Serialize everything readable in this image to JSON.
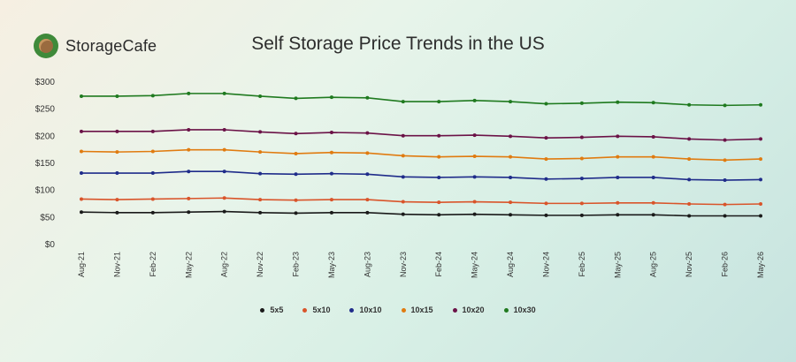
{
  "brand": {
    "name": "StorageCafe"
  },
  "chart_data": {
    "type": "line",
    "title": "Self Storage Price Trends in the US",
    "xlabel": "",
    "ylabel": "",
    "ylim": [
      0,
      300
    ],
    "y_ticks": [
      "$0",
      "$50",
      "$100",
      "$150",
      "$200",
      "$250",
      "$300"
    ],
    "grid": false,
    "legend_position": "bottom",
    "categories": [
      "Aug-21",
      "Nov-21",
      "Feb-22",
      "May-22",
      "Aug-22",
      "Nov-22",
      "Feb-23",
      "May-23",
      "Aug-23",
      "Nov-23",
      "Feb-24",
      "May-24",
      "Aug-24",
      "Nov-24",
      "Feb-25",
      "May-25",
      "Aug-25",
      "Nov-25",
      "Feb-26",
      "May-26"
    ],
    "series": [
      {
        "name": "5x5",
        "color": "#1a1a1a",
        "values": [
          60,
          59,
          59,
          60,
          61,
          59,
          58,
          59,
          59,
          56,
          55,
          56,
          55,
          54,
          54,
          55,
          55,
          53,
          53,
          53
        ]
      },
      {
        "name": "5x10",
        "color": "#d9542a",
        "values": [
          84,
          83,
          84,
          85,
          86,
          83,
          82,
          83,
          83,
          79,
          78,
          79,
          78,
          76,
          76,
          77,
          77,
          75,
          74,
          75
        ]
      },
      {
        "name": "10x10",
        "color": "#1f2c8a",
        "values": [
          132,
          132,
          132,
          135,
          135,
          131,
          130,
          131,
          130,
          125,
          124,
          125,
          124,
          121,
          122,
          124,
          124,
          120,
          119,
          120
        ]
      },
      {
        "name": "10x15",
        "color": "#e07b10",
        "values": [
          172,
          171,
          172,
          175,
          175,
          171,
          168,
          170,
          169,
          164,
          162,
          163,
          162,
          158,
          159,
          162,
          162,
          158,
          156,
          158
        ]
      },
      {
        "name": "10x20",
        "color": "#6b1247",
        "values": [
          209,
          209,
          209,
          212,
          212,
          208,
          205,
          207,
          206,
          201,
          201,
          202,
          200,
          197,
          198,
          200,
          199,
          195,
          193,
          195
        ]
      },
      {
        "name": "10x30",
        "color": "#1f7a1f",
        "values": [
          274,
          274,
          275,
          279,
          279,
          274,
          270,
          272,
          271,
          264,
          264,
          266,
          264,
          260,
          261,
          263,
          262,
          258,
          257,
          258
        ]
      }
    ]
  }
}
